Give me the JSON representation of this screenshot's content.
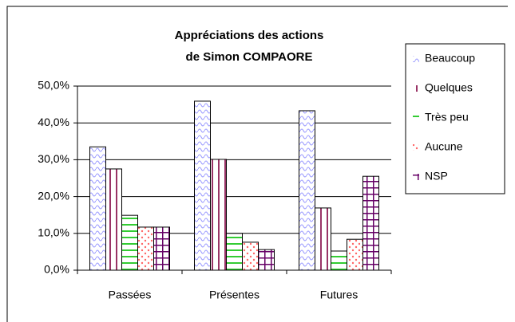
{
  "chart_data": {
    "type": "bar",
    "title": [
      "Appréciations des actions",
      "de Simon COMPAORE"
    ],
    "categories": [
      "Passées",
      "Présentes",
      "Futures"
    ],
    "series": [
      {
        "name": "Beaucoup",
        "color": "#9999ff",
        "values": [
          33.5,
          45.9,
          43.3
        ]
      },
      {
        "name": "Quelques",
        "color": "#993366",
        "values": [
          27.5,
          30.1,
          16.9
        ]
      },
      {
        "name": "Très peu",
        "color": "#33cc33",
        "values": [
          14.9,
          10.0,
          5.2
        ]
      },
      {
        "name": "Aucune",
        "color": "#ff6666",
        "values": [
          11.7,
          7.6,
          8.4
        ]
      },
      {
        "name": "NSP",
        "color": "#660066",
        "values": [
          11.7,
          5.6,
          25.5
        ]
      }
    ],
    "ylim": [
      0,
      50
    ],
    "yticks": [
      {
        "value": 0,
        "label": "0,0%"
      },
      {
        "value": 10,
        "label": "10,0%"
      },
      {
        "value": 20,
        "label": "20,0%"
      },
      {
        "value": 30,
        "label": "30,0%"
      },
      {
        "value": 40,
        "label": "40,0%"
      },
      {
        "value": 50,
        "label": "50,0%"
      }
    ],
    "grid": true,
    "legend": "right"
  }
}
